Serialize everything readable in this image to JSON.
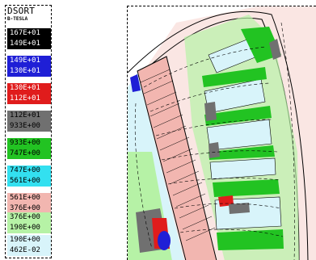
{
  "legend": {
    "title": "DSORT",
    "unit": "B-TESLA",
    "bands": [
      {
        "hi": "167E+01",
        "lo": "149E+01",
        "color": "#000000",
        "text_color": "#ffffff"
      },
      {
        "hi": "149E+01",
        "lo": "130E+01",
        "color": "#1f1fd6",
        "text_color": "#ffffff"
      },
      {
        "hi": "130E+01",
        "lo": "112E+01",
        "color": "#e01c1c",
        "text_color": "#ffffff"
      },
      {
        "hi": "112E+01",
        "lo": "933E+00",
        "color": "#707070",
        "text_color": "#000000"
      },
      {
        "hi": "933E+00",
        "lo": "747E+00",
        "color": "#22c322",
        "text_color": "#000000"
      },
      {
        "hi": "747E+00",
        "lo": "561E+00",
        "color": "#33e0f0",
        "text_color": "#000000"
      },
      {
        "hi": "561E+00",
        "lo": "376E+00",
        "color": "#f2b6b0",
        "text_color": "#000000"
      },
      {
        "hi": "376E+00",
        "lo": "190E+00",
        "color": "#b6f2a6",
        "text_color": "#000000"
      },
      {
        "hi": "190E+00",
        "lo": "462E-02",
        "color": "#d8f4fa",
        "text_color": "#000000"
      }
    ]
  },
  "plot": {
    "colors": {
      "black": "#000000",
      "blue": "#1f1fd6",
      "red": "#e01c1c",
      "grey": "#707070",
      "green": "#22c322",
      "cyan": "#33e0f0",
      "pink": "#f2b6b0",
      "lightgreen": "#b6f2a6",
      "pale": "#d8f4fa"
    }
  }
}
